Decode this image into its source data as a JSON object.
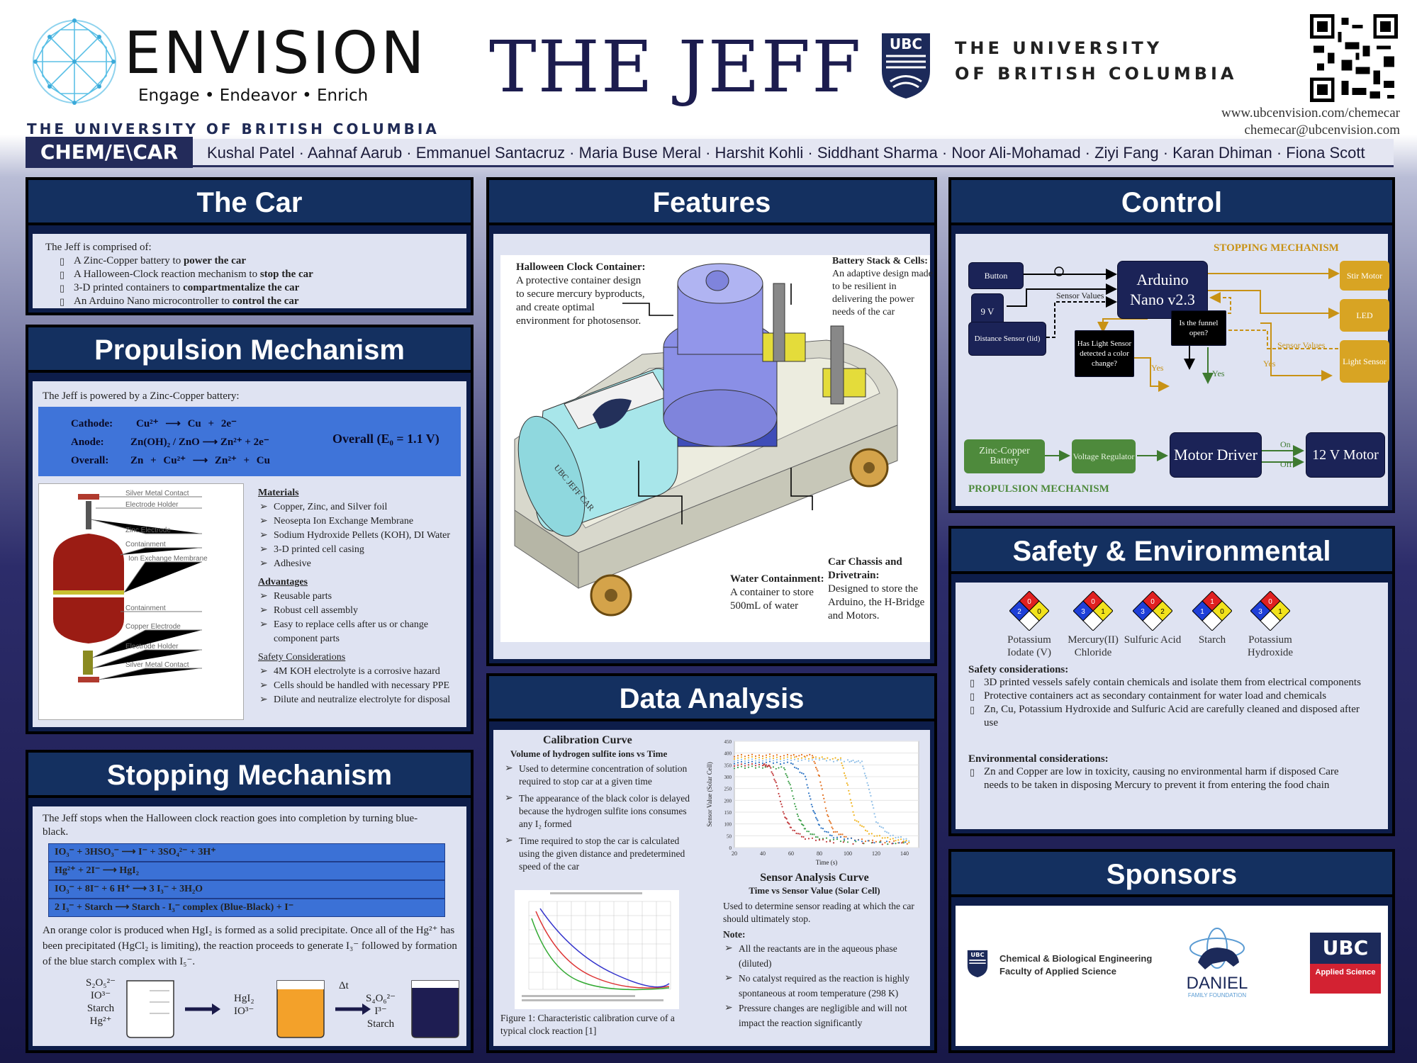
{
  "header": {
    "envision_title": "ENVISION",
    "envision_tagline": "Engage • Endeavor • Enrich",
    "envision_university": "THE UNIVERSITY OF BRITISH COLUMBIA",
    "poster_title": "THE JEFF",
    "ubc_line1": "THE UNIVERSITY",
    "ubc_line2": "OF BRITISH COLUMBIA",
    "website": "www.ubcenvision.com/chemecar",
    "email": "chemecar@ubcenvision.com",
    "brand": "CHEM/E\\CAR",
    "authors": "Kushal Patel · Aahnaf Aarub · Emmanuel Santacruz · Maria Buse Meral · Harshit Kohli · Siddhant Sharma · Noor Ali-Mohamad · Ziyi Fang · Karan Dhiman · Fiona Scott"
  },
  "car": {
    "title": "The Car",
    "intro": "The Jeff is comprised of:",
    "items": [
      {
        "pre": "A Zinc-Copper battery to ",
        "bold": "power the car"
      },
      {
        "pre": "A Halloween-Clock reaction mechanism to ",
        "bold": "stop the car"
      },
      {
        "pre": "3-D printed containers to ",
        "bold": "compartmentalize the car"
      },
      {
        "pre": "An Arduino Nano microcontroller to ",
        "bold": "control the car"
      }
    ]
  },
  "propulsion": {
    "title": "Propulsion Mechanism",
    "intro": "The Jeff is powered by a Zinc-Copper battery:",
    "cathode_label": "Cathode:",
    "cathode_eq": "Cu²⁺ ⟶ Cu + 2e⁻",
    "anode_label": "Anode:",
    "anode_eq": "Zn(OH)₂ / ZnO ⟶ Zn²⁺ + 2e⁻",
    "overall_label": "Overall:",
    "overall_eq": "Zn + Cu²⁺ ⟶ Zn²⁺ + Cu",
    "overall_potential": "Overall (E₀ = 1.1 V)",
    "cell_labels": [
      "Silver Metal Contact",
      "Electrode Holder",
      "Zinc Electrode",
      "Containment",
      "Ion Exchange Membrane",
      "Containment",
      "Copper Electrode",
      "Electrode Holder",
      "Silver Metal Contact"
    ],
    "materials_title": "Materials",
    "materials": [
      "Copper, Zinc, and Silver foil",
      "Neosepta Ion Exchange Membrane",
      "Sodium Hydroxide Pellets (KOH), DI Water",
      "3-D printed cell casing",
      "Adhesive"
    ],
    "advantages_title": "Advantages",
    "advantages": [
      "Reusable parts",
      "Robust cell assembly",
      "Easy to replace cells after us or change component parts"
    ],
    "safety_title": "Safety Considerations",
    "safety": [
      "4M KOH electrolyte is a corrosive hazard",
      "Cells should be handled with necessary PPE",
      "Dilute and neutralize electrolyte for disposal"
    ]
  },
  "stopping": {
    "title": "Stopping Mechanism",
    "intro": "The Jeff stops when the Halloween clock reaction goes into completion by turning blue-black.",
    "reactions": [
      "IO₃⁻ + 3HSO₃⁻  ⟶  I⁻ + 3SO₄²⁻ + 3H⁺",
      "Hg²⁺ + 2I⁻  ⟶  HgI₂",
      "IO₃⁻ + 8I⁻ + 6 H⁺  ⟶  3 I₃⁻ + 3H₂O",
      "2 I₃⁻ + Starch  ⟶  Starch - I₃⁻ complex (Blue-Black) + I⁻"
    ],
    "explanation": "An orange color is produced when HgI₂ is formed as a solid precipitate. Once all of the Hg²⁺ has been precipitated (HgCl₂ is limiting), the reaction proceeds to generate I₃⁻ followed by formation of the blue starch complex with I₅⁻.",
    "beaker1": [
      "S₂O₅²⁻",
      "IO³⁻",
      "Starch",
      "Hg²⁺"
    ],
    "beaker2": [
      "HgI₂",
      "IO³⁻"
    ],
    "delta": "Δt",
    "beaker3": [
      "S₄O₆²⁻",
      "I³⁻",
      "Starch"
    ]
  },
  "features": {
    "title": "Features",
    "halloween_title": "Halloween Clock Container:",
    "halloween_text": "A protective container design to secure mercury byproducts, and create optimal environment for photosensor.",
    "battery_title": "Battery Stack & Cells:",
    "battery_text": "An adaptive design made to be resilient in delivering the power needs of the car",
    "water_title": "Water Containment:",
    "water_text": "A container to store 500mL of water",
    "chassis_title": "Car Chassis and Drivetrain:",
    "chassis_text": "Designed to store the Arduino, the H-Bridge and Motors.",
    "car_label": "UBC JEFF CAR"
  },
  "data_analysis": {
    "title": "Data Analysis",
    "cal_title": "Calibration Curve",
    "cal_subtitle": "Volume of hydrogen sulfite ions vs Time",
    "cal_points": [
      "Used to determine concentration of solution required to stop car at a given time",
      "The appearance of the black color is delayed because the hydrogen sulfite ions consumes any I₂ formed",
      "Time required to stop the car is calculated using the given distance and predetermined speed of the car"
    ],
    "figure_caption": "Figure 1: Characteristic calibration curve of a typical clock reaction [1]",
    "sensor_title": "Sensor Analysis Curve",
    "sensor_subtitle": "Time vs Sensor Value (Solar Cell)",
    "sensor_text": "Used to determine sensor reading at which the car should ultimately stop.",
    "note_title": "Note:",
    "notes": [
      "All the reactants are in the aqueous phase (diluted)",
      "No catalyst required as the reaction is highly spontaneous at room temperature (298 K)",
      "Pressure changes are negligible and will not impact the reaction significantly"
    ]
  },
  "chart_data": {
    "type": "scatter",
    "title": "",
    "xlabel": "Time (s)",
    "ylabel": "Sensor Value (Solar Cell)",
    "xlim": [
      20,
      150
    ],
    "ylim": [
      0,
      450
    ],
    "xticks": [
      20,
      40,
      60,
      80,
      100,
      120,
      140
    ],
    "yticks": [
      0,
      50,
      100,
      150,
      200,
      250,
      300,
      350,
      400,
      450
    ],
    "grid": true,
    "series": [
      {
        "color": "#e3701e",
        "x": [
          20,
          40,
          60,
          75,
          80,
          85,
          90,
          100,
          120,
          145
        ],
        "y": [
          390,
          390,
          390,
          388,
          300,
          150,
          70,
          40,
          25,
          20
        ]
      },
      {
        "color": "#2d74c4",
        "x": [
          20,
          40,
          60,
          70,
          75,
          80,
          90,
          110,
          145
        ],
        "y": [
          360,
          360,
          358,
          300,
          170,
          90,
          45,
          28,
          18
        ]
      },
      {
        "color": "#3ea04a",
        "x": [
          20,
          40,
          55,
          60,
          65,
          70,
          80,
          100,
          145
        ],
        "y": [
          340,
          340,
          338,
          250,
          130,
          75,
          40,
          25,
          15
        ]
      },
      {
        "color": "#f0b31d",
        "x": [
          20,
          40,
          60,
          80,
          95,
          100,
          105,
          115,
          130,
          145
        ],
        "y": [
          380,
          380,
          380,
          378,
          376,
          260,
          120,
          60,
          35,
          25
        ]
      },
      {
        "color": "#8fbfe8",
        "x": [
          20,
          40,
          60,
          80,
          100,
          110,
          115,
          120,
          130,
          145
        ],
        "y": [
          370,
          370,
          370,
          370,
          368,
          360,
          250,
          110,
          50,
          30
        ]
      },
      {
        "color": "#c1393b",
        "x": [
          20,
          40,
          45,
          50,
          55,
          60,
          70,
          90,
          145
        ],
        "y": [
          350,
          350,
          345,
          260,
          140,
          80,
          40,
          22,
          15
        ]
      }
    ]
  },
  "control": {
    "title": "Control",
    "stopping_label": "STOPPING MECHANISM",
    "propulsion_label": "PROPULSION MECHANISM",
    "button": "Button",
    "nine_v": "9 V",
    "arduino": "Arduino Nano v2.3",
    "sensor_values_1": "Sensor Values",
    "sensor_values_2": "Sensor Values",
    "distance_sensor": "Distance Sensor (lid)",
    "light_q": "Has Light Sensor detected a color change?",
    "funnel_q": "Is the funnel open?",
    "stir_motor": "Stir Motor",
    "led": "LED",
    "light_sensor": "Light Sensor",
    "yes1": "Yes",
    "yes2": "Yes",
    "yes3": "Yes",
    "battery": "Zinc-Copper Battery",
    "regulator": "Voltage Regulator",
    "motor_driver": "Motor Driver",
    "on": "On",
    "off": "Off",
    "motor": "12 V Motor"
  },
  "safety": {
    "title": "Safety & Environmental",
    "chemicals": [
      {
        "name": "Potassium Iodate (V)",
        "h": "2",
        "f": "0",
        "r": "0"
      },
      {
        "name": "Mercury(II) Chloride",
        "h": "3",
        "f": "0",
        "r": "1"
      },
      {
        "name": "Sulfuric Acid",
        "h": "3",
        "f": "0",
        "r": "2"
      },
      {
        "name": "Starch",
        "h": "1",
        "f": "1",
        "r": "0"
      },
      {
        "name": "Potassium Hydroxide",
        "h": "3",
        "f": "0",
        "r": "1"
      }
    ],
    "safety_title": "Safety considerations:",
    "safety_items": [
      "3D printed vessels safely contain chemicals and isolate them from electrical components",
      "Protective containers act as secondary containment for water load and chemicals",
      "Zn, Cu, Potassium Hydroxide and Sulfuric Acid are carefully cleaned and disposed after use"
    ],
    "env_title": "Environmental considerations:",
    "env_items": [
      "Zn and Copper are low in toxicity, causing no environmental harm if disposed Care needs to be taken in disposing Mercury to prevent it from entering the food chain"
    ]
  },
  "sponsors": {
    "title": "Sponsors",
    "s1_line1": "Chemical & Biological Engineering",
    "s1_line2": "Faculty of Applied Science",
    "s2_name": "DANIEL",
    "s2_sub": "FAMILY FOUNDATION",
    "s3_name": "UBC",
    "s3_sub": "Applied Science"
  },
  "colors": {
    "navy": "#143060",
    "panel_bg": "#dfe3f2",
    "accent_blue": "#3f74d9",
    "gold": "#d8a423",
    "green": "#4e8a3c"
  }
}
